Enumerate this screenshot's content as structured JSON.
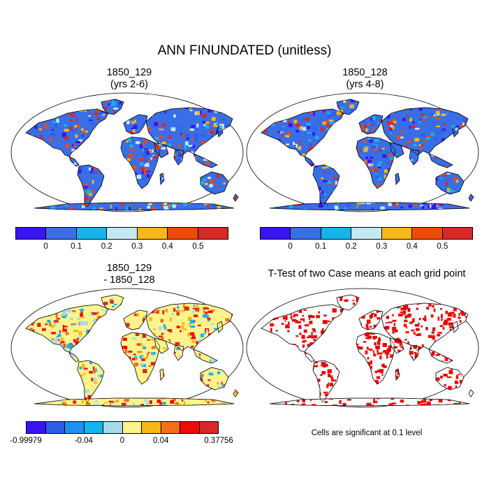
{
  "title": "ANN FINUNDATED (unitless)",
  "panels": {
    "p1": {
      "line1": "1850_129",
      "line2": "(yrs 2-6)"
    },
    "p2": {
      "line1": "1850_128",
      "line2": "(yrs 4-8)"
    },
    "p3": {
      "line1": "1850_129",
      "line2": "- 1850_128"
    },
    "p4": {
      "line1": "T-Test of two Case means at each grid point"
    }
  },
  "colorbars": {
    "main": {
      "colors": [
        "#3a14f0",
        "#3a6ee6",
        "#16b4ec",
        "#c6e8f2",
        "#f8b818",
        "#f04a0a",
        "#d82828"
      ],
      "labels": [
        "0",
        "0.1",
        "0.2",
        "0.3",
        "0.4",
        "0.5"
      ]
    },
    "diff": {
      "colors": [
        "#3a14f0",
        "#2e5ee6",
        "#1e90f0",
        "#16b4ec",
        "#a8d8ec",
        "#fff48c",
        "#f8b818",
        "#f47018",
        "#f00a0a",
        "#d82828"
      ],
      "labels": [
        "-0.99979",
        "-0.04",
        "0",
        "0.04",
        "0.37756"
      ]
    }
  },
  "significance_note": "Cells are significant at 0.1 level",
  "colors": {
    "land_abs": "#3a6ee6",
    "land_diff": "#fff48c",
    "significant": "#f00a0a"
  }
}
